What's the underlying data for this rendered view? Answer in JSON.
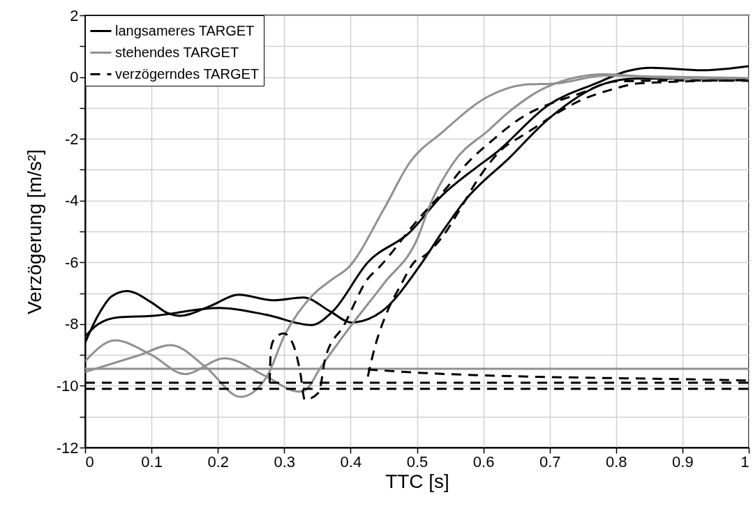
{
  "chart_data": {
    "type": "line",
    "xlabel": "TTC [s]",
    "ylabel": "Verzögerung [m/s²]",
    "xlim": [
      0,
      1
    ],
    "xticks": [
      0,
      0.1,
      0.2,
      0.3,
      0.4,
      0.5,
      0.6,
      0.7,
      0.8,
      0.9,
      1
    ],
    "ylim": [
      -12,
      2
    ],
    "yticks": [
      -12,
      {
        "value": -11,
        "label": null
      },
      -10,
      {
        "value": -9,
        "label": null
      },
      -8,
      {
        "value": -7,
        "label": null
      },
      -6,
      {
        "value": -5,
        "label": null
      },
      -4,
      {
        "value": -3,
        "label": null
      },
      -2,
      {
        "value": -1,
        "label": null
      },
      0,
      {
        "value": 1,
        "label": null
      },
      2
    ],
    "grid": true,
    "legend": "top left",
    "series": [
      {
        "name": "langsameres TARGET",
        "color": "#000000",
        "line_style": "solid",
        "x": [
          0,
          0.02,
          0.04,
          0.063,
          0.1,
          0.122,
          0.143,
          0.19,
          0.231,
          0.284,
          0.329,
          0.37,
          0.401,
          0.447,
          0.503,
          0.538,
          0.573,
          0.639,
          0.699,
          0.783,
          0.83,
          0.9,
          1
        ],
        "values": [
          -8.6,
          -7.7,
          -7.1,
          -6.93,
          -7.3,
          -7.62,
          -7.73,
          -7.4,
          -7.05,
          -7.23,
          -7.14,
          -7.6,
          -7.95,
          -7.59,
          -6.15,
          -5.02,
          -3.98,
          -2.62,
          -1.34,
          -0.21,
          -0.05,
          -0.05,
          -0.05
        ]
      },
      {
        "color": "#000000",
        "line_style": "solid",
        "x": [
          0,
          0.02,
          0.052,
          0.098,
          0.203,
          0.273,
          0.341,
          0.373,
          0.426,
          0.489,
          0.538,
          0.59,
          0.618,
          0.699,
          0.769,
          0.818,
          0.853,
          0.93,
          1
        ],
        "values": [
          -8.4,
          -8.0,
          -7.78,
          -7.74,
          -7.48,
          -7.7,
          -8.03,
          -7.59,
          -6.0,
          -5.03,
          -3.83,
          -2.92,
          -2.47,
          -0.89,
          -0.21,
          0.2,
          0.3,
          0.22,
          0.35
        ]
      },
      {
        "name": "stehendes TARGET",
        "color": "#909090",
        "line_style": "solid",
        "x": [
          0,
          0.045,
          0.1,
          0.15,
          0.21,
          0.273,
          0.322,
          0.331,
          0.355,
          0.401,
          0.45,
          0.503,
          0.517,
          0.555,
          0.608,
          0.639,
          0.699,
          0.783,
          0.85,
          1
        ],
        "values": [
          -9.2,
          -8.53,
          -9.0,
          -9.62,
          -9.11,
          -9.7,
          -10.19,
          -10.15,
          -9.4,
          -8.04,
          -6.69,
          -5.11,
          -4.28,
          -2.77,
          -1.72,
          -1.12,
          -0.29,
          0.09,
          0.0,
          -0.1
        ]
      },
      {
        "color": "#909090",
        "line_style": "solid",
        "x": [
          0,
          0.08,
          0.129,
          0.182,
          0.234,
          0.273,
          0.301,
          0.343,
          0.371,
          0.397,
          0.45,
          0.489,
          0.538,
          0.608,
          0.66,
          0.713,
          0.783,
          0.85,
          1
        ],
        "values": [
          -9.55,
          -9.02,
          -8.68,
          -9.4,
          -10.36,
          -9.73,
          -8.34,
          -7.06,
          -6.57,
          -6.16,
          -4.28,
          -2.77,
          -1.79,
          -0.62,
          -0.25,
          -0.2,
          0.05,
          0.02,
          -0.03
        ]
      },
      {
        "color": "#909090",
        "line_style": "solid",
        "x": [
          0,
          1
        ],
        "values": [
          -9.45,
          -9.45
        ]
      },
      {
        "name": "verzögerndes TARGET",
        "color": "#000000",
        "line_style": "dashed",
        "x": [
          0.278,
          0.28,
          0.285,
          0.299,
          0.313,
          0.324,
          0.331,
          0.352,
          0.362,
          0.39,
          0.426,
          0.443,
          0.503,
          0.541,
          0.573,
          0.615,
          0.65,
          0.748,
          0.8,
          0.9,
          1
        ],
        "values": [
          -9.9,
          -8.79,
          -8.49,
          -8.3,
          -8.64,
          -9.55,
          -10.45,
          -10.22,
          -9.09,
          -8.04,
          -6.53,
          -6.16,
          -4.58,
          -3.68,
          -2.85,
          -2.02,
          -1.42,
          -0.51,
          -0.14,
          -0.11,
          -0.12
        ]
      },
      {
        "color": "#000000",
        "line_style": "dashed",
        "x": [
          0.426,
          0.436,
          0.454,
          0.475,
          0.499,
          0.506,
          0.538,
          0.569,
          0.59,
          0.625,
          0.664,
          0.748,
          0.794,
          0.835,
          1
        ],
        "values": [
          -9.7,
          -8.79,
          -7.66,
          -6.76,
          -5.93,
          -5.86,
          -5.18,
          -4.13,
          -3.37,
          -2.4,
          -1.83,
          -0.74,
          -0.4,
          -0.2,
          -0.1
        ]
      },
      {
        "color": "#000000",
        "line_style": "dashed",
        "x": [
          0,
          1
        ],
        "values": [
          -9.9,
          -9.9
        ]
      },
      {
        "color": "#000000",
        "line_style": "dashed",
        "x": [
          0,
          1
        ],
        "values": [
          -10.1,
          -10.1
        ]
      },
      {
        "color": "#000000",
        "line_style": "dashed",
        "x": [
          0.426,
          0.524,
          0.958,
          1
        ],
        "values": [
          -9.47,
          -9.6,
          -9.81,
          -9.83
        ]
      }
    ]
  }
}
